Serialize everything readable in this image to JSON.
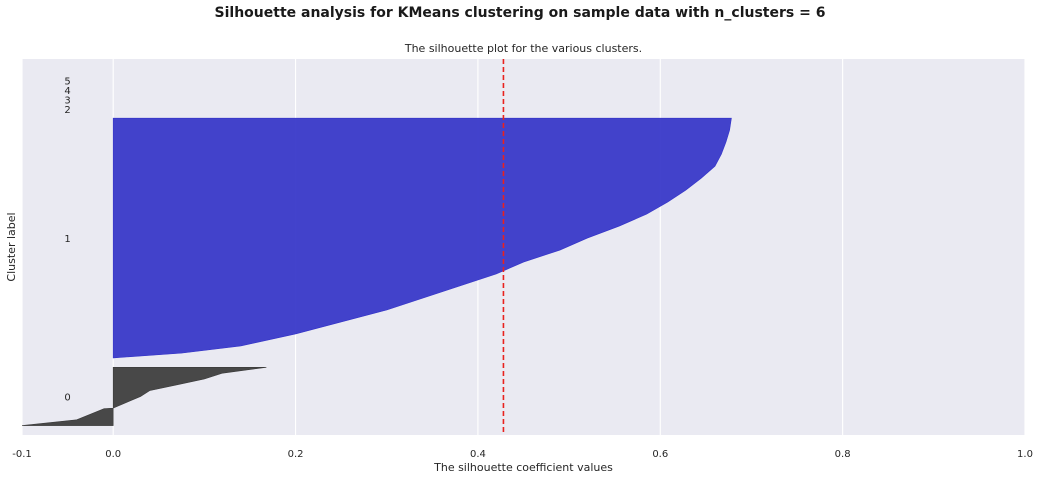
{
  "figure": {
    "suptitle": "Silhouette analysis for KMeans clustering on sample data with n_clusters = 6"
  },
  "chart_data": {
    "type": "area",
    "title": "The silhouette plot for the various clusters.",
    "xlabel": "The silhouette coefficient values",
    "ylabel": "Cluster label",
    "xlim": [
      -0.1,
      1.0
    ],
    "x_ticks": [
      -0.1,
      0.0,
      0.2,
      0.4,
      0.6,
      0.8,
      1.0
    ],
    "x_tick_labels": [
      "-0.1",
      "0.0",
      "0.2",
      "0.4",
      "0.6",
      "0.8",
      "1.0"
    ],
    "ylim": [
      0,
      400
    ],
    "y_ticks": [],
    "grid": true,
    "average_silhouette_score": 0.428,
    "average_line_color": "#e8221e",
    "clusters": [
      {
        "label": "0",
        "color": "#3a3a3a",
        "y_lower": 10,
        "y_upper": 72,
        "label_y": 41,
        "profile": [
          [
            0,
            -0.1
          ],
          [
            0.1,
            -0.04
          ],
          [
            0.29,
            -0.01
          ],
          [
            0.3,
            0.0
          ],
          [
            0.5,
            0.03
          ],
          [
            0.6,
            0.04
          ],
          [
            0.7,
            0.07
          ],
          [
            0.8,
            0.1
          ],
          [
            0.9,
            0.12
          ],
          [
            1.0,
            0.168
          ]
        ]
      },
      {
        "label": "1",
        "color": "#3333c8",
        "y_lower": 82,
        "y_upper": 337,
        "label_y": 209.5,
        "profile": [
          [
            0,
            0.0
          ],
          [
            0.02,
            0.075
          ],
          [
            0.05,
            0.14
          ],
          [
            0.1,
            0.2
          ],
          [
            0.15,
            0.25
          ],
          [
            0.2,
            0.3
          ],
          [
            0.25,
            0.34
          ],
          [
            0.3,
            0.38
          ],
          [
            0.35,
            0.42
          ],
          [
            0.4,
            0.45
          ],
          [
            0.45,
            0.49
          ],
          [
            0.5,
            0.52
          ],
          [
            0.55,
            0.555
          ],
          [
            0.6,
            0.585
          ],
          [
            0.65,
            0.608
          ],
          [
            0.7,
            0.628
          ],
          [
            0.75,
            0.645
          ],
          [
            0.8,
            0.66
          ],
          [
            0.85,
            0.667
          ],
          [
            0.9,
            0.672
          ],
          [
            0.95,
            0.676
          ],
          [
            1.0,
            0.678
          ]
        ]
      },
      {
        "label": "2",
        "color": "#1f8fbf",
        "y_lower": 347,
        "y_upper": 347,
        "label_y": 347,
        "profile": [
          [
            0,
            0.0
          ],
          [
            1.0,
            0.0
          ]
        ]
      },
      {
        "label": "3",
        "color": "#2ca02c",
        "y_lower": 357,
        "y_upper": 357,
        "label_y": 357,
        "profile": [
          [
            0,
            0.0
          ],
          [
            1.0,
            0.0
          ]
        ]
      },
      {
        "label": "4",
        "color": "#bcbd22",
        "y_lower": 367,
        "y_upper": 367,
        "label_y": 367,
        "profile": [
          [
            0,
            0.0
          ],
          [
            1.0,
            0.0
          ]
        ]
      },
      {
        "label": "5",
        "color": "#d62728",
        "y_lower": 377,
        "y_upper": 377,
        "label_y": 377,
        "profile": [
          [
            0,
            0.0
          ],
          [
            1.0,
            0.0
          ]
        ]
      }
    ]
  }
}
